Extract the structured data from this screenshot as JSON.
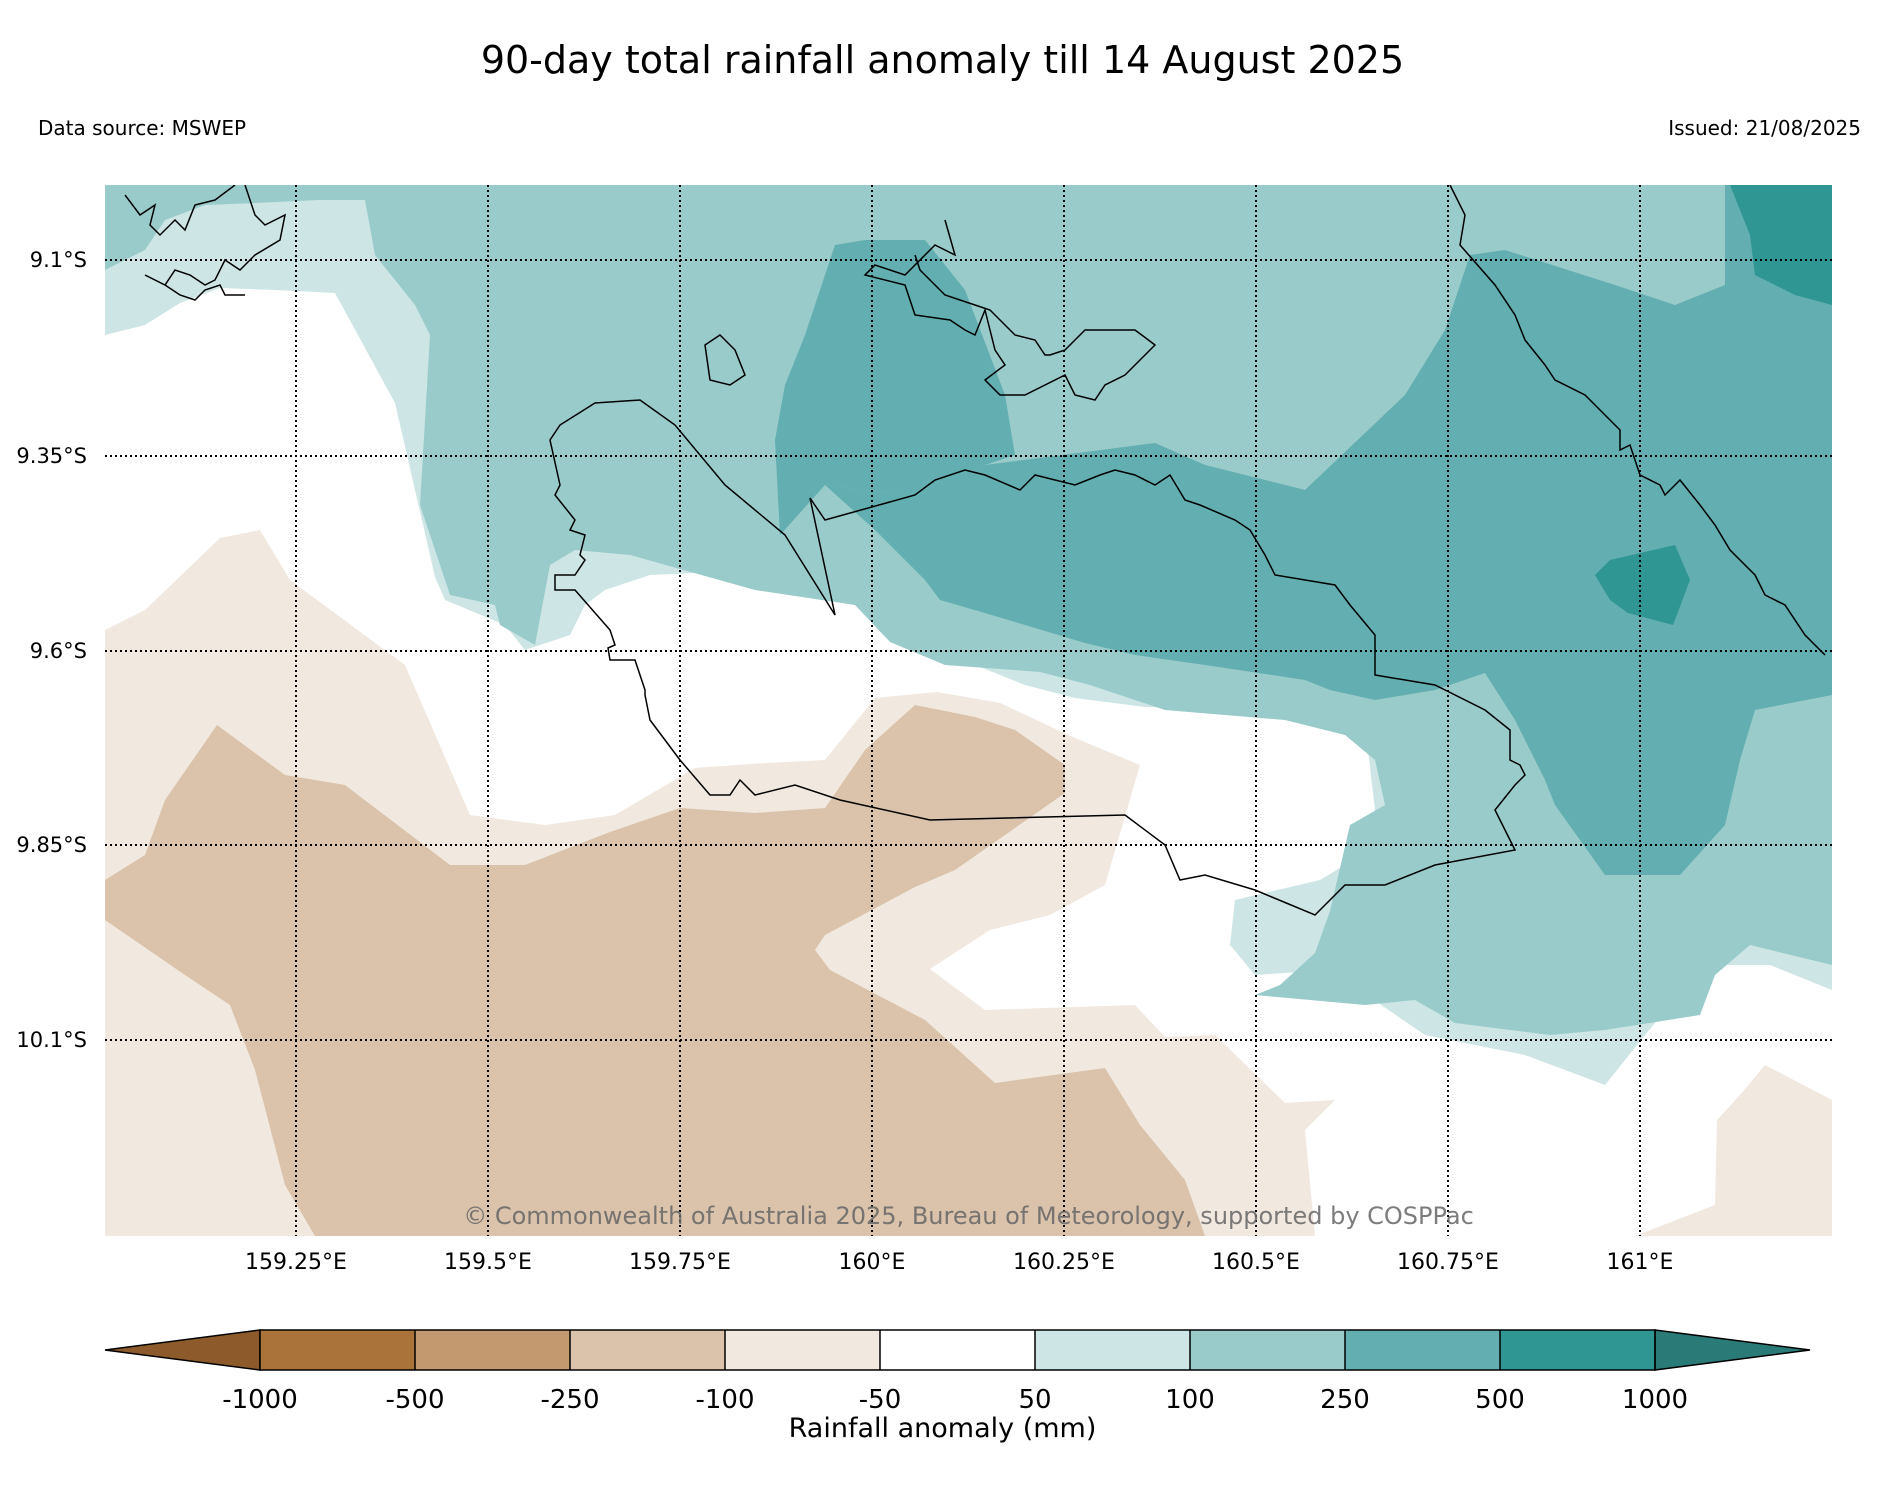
{
  "title": "90-day total rainfall anomaly till 14 August 2025",
  "data_source": "Data source: MSWEP",
  "issued": "Issued: 21/08/2025",
  "copyright": "© Commonwealth of Australia 2025, Bureau of Meteorology, supported by COSPPac",
  "latitude_labels": [
    "9.1°S",
    "9.35°S",
    "9.6°S",
    "9.85°S",
    "10.1°S"
  ],
  "longitude_labels": [
    "159.25°E",
    "159.5°E",
    "159.75°E",
    "160°E",
    "160.25°E",
    "160.5°E",
    "160.75°E",
    "161°E"
  ],
  "colorbar": {
    "title": "Rainfall anomaly (mm)",
    "tick_labels": [
      "-1000",
      "-500",
      "-250",
      "-100",
      "-50",
      "50",
      "100",
      "250",
      "500",
      "1000"
    ],
    "under_color": "#8c5a2b",
    "over_color": "#2a7b77",
    "bins": [
      {
        "from": "-1000",
        "to": "-500",
        "color": "#aa733a"
      },
      {
        "from": "-500",
        "to": "-250",
        "color": "#c39a6f"
      },
      {
        "from": "-250",
        "to": "-100",
        "color": "#dac3aa"
      },
      {
        "from": "-100",
        "to": "-50",
        "color": "#f1e8df"
      },
      {
        "from": "-50",
        "to": "50",
        "color": "#ffffff"
      },
      {
        "from": "50",
        "to": "100",
        "color": "#cde6e5"
      },
      {
        "from": "100",
        "to": "250",
        "color": "#9acbcb"
      },
      {
        "from": "250",
        "to": "500",
        "color": "#62aeb0"
      },
      {
        "from": "500",
        "to": "1000",
        "color": "#2f9693"
      }
    ]
  },
  "map_colors": {
    "light_brown": "#f1e8df",
    "tan": "#dac3aa",
    "pale_teal": "#cde6e5",
    "light_teal": "#9acbcb",
    "mid_teal": "#62aeb0",
    "dark_teal": "#2f9693",
    "coastline": "#000000",
    "gridline": "#000000"
  }
}
